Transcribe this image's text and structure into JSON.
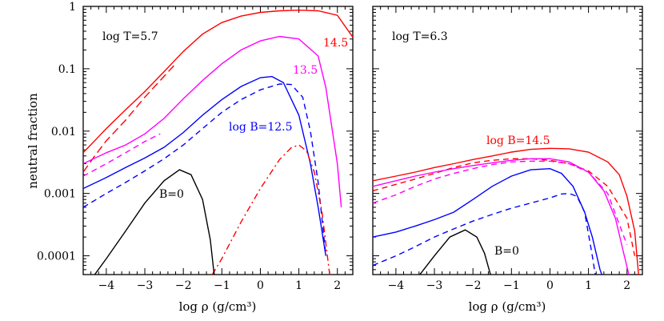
{
  "chart_data": [
    {
      "type": "line",
      "panel_label": "log T=5.7",
      "xlabel": "log ρ (g/cm³)",
      "ylabel": "neutral fraction",
      "xlim": [
        -4.6,
        2.4
      ],
      "ylim": [
        5e-05,
        1
      ],
      "yscale": "log",
      "xticks": [
        -4,
        -3,
        -2,
        -1,
        0,
        1,
        2
      ],
      "xtick_labels": [
        "−4",
        "−3",
        "−2",
        "−1",
        "0",
        "1",
        "2"
      ],
      "yticks": [
        0.0001,
        0.001,
        0.01,
        0.1,
        1
      ],
      "ytick_labels": [
        "0.0001",
        "0.001",
        "0.01",
        "0.1",
        "1"
      ],
      "grid": false,
      "series": [
        {
          "label": "14.5",
          "color": "#ff0000",
          "dash": "solid",
          "x": [
            -4.6,
            -4.3,
            -4,
            -3.5,
            -3,
            -2.5,
            -2,
            -1.5,
            -1,
            -0.5,
            0,
            0.5,
            1,
            1.5,
            2,
            2.4
          ],
          "y": [
            0.0045,
            0.007,
            0.011,
            0.022,
            0.043,
            0.09,
            0.19,
            0.36,
            0.55,
            0.7,
            0.8,
            0.85,
            0.87,
            0.85,
            0.72,
            0.32
          ]
        },
        {
          "label": "",
          "color": "#ff0000",
          "dash": "longdash",
          "x": [
            -4.6,
            -4.3,
            -4,
            -3.5,
            -3,
            -2.6,
            -2.2
          ],
          "y": [
            0.0022,
            0.004,
            0.007,
            0.015,
            0.035,
            0.065,
            0.12
          ]
        },
        {
          "label": "13.5",
          "color": "#ff00ff",
          "dash": "solid",
          "x": [
            -4.6,
            -4,
            -3.5,
            -3,
            -2.5,
            -2,
            -1.5,
            -1,
            -0.5,
            0,
            0.5,
            1,
            1.5,
            1.7,
            2,
            2.1
          ],
          "y": [
            0.003,
            0.0045,
            0.006,
            0.009,
            0.016,
            0.033,
            0.065,
            0.12,
            0.2,
            0.28,
            0.33,
            0.3,
            0.16,
            0.05,
            0.003,
            0.0006
          ]
        },
        {
          "label": "",
          "color": "#ff00ff",
          "dash": "dash",
          "x": [
            -4.6,
            -4,
            -3.5,
            -3,
            -2.6
          ],
          "y": [
            0.0019,
            0.003,
            0.0045,
            0.0068,
            0.009
          ]
        },
        {
          "label": "log B=12.5",
          "color": "#0000ff",
          "dash": "solid",
          "x": [
            -4.6,
            -4,
            -3.5,
            -3,
            -2.5,
            -2,
            -1.5,
            -1,
            -0.5,
            0,
            0.3,
            0.6,
            1,
            1.3,
            1.5,
            1.7
          ],
          "y": [
            0.0012,
            0.0018,
            0.0026,
            0.0037,
            0.0055,
            0.0095,
            0.018,
            0.032,
            0.052,
            0.072,
            0.075,
            0.06,
            0.018,
            0.003,
            0.0006,
            0.0001
          ]
        },
        {
          "label": "",
          "color": "#0000ff",
          "dash": "dash",
          "x": [
            -4.6,
            -4,
            -3.5,
            -3,
            -2.5,
            -2,
            -1.5,
            -1,
            -0.5,
            0,
            0.5,
            0.8,
            1.1,
            1.3,
            1.5,
            1.7
          ],
          "y": [
            0.0006,
            0.001,
            0.0015,
            0.0023,
            0.0036,
            0.006,
            0.011,
            0.02,
            0.032,
            0.046,
            0.057,
            0.056,
            0.035,
            0.01,
            0.0015,
            0.0001
          ]
        },
        {
          "label": "",
          "color": "#ff0000",
          "dash": "dashdot",
          "x": [
            -1.25,
            -1,
            -0.5,
            0,
            0.5,
            0.8,
            1,
            1.2,
            1.4,
            1.6,
            1.8
          ],
          "y": [
            5e-05,
            9e-05,
            0.00035,
            0.0012,
            0.0035,
            0.0054,
            0.006,
            0.0048,
            0.0022,
            0.0005,
            5e-05
          ]
        },
        {
          "label": "B=0",
          "color": "#000000",
          "dash": "solid",
          "x": [
            -4.3,
            -4,
            -3.5,
            -3,
            -2.5,
            -2.1,
            -1.8,
            -1.5,
            -1.3,
            -1.2
          ],
          "y": [
            5e-05,
            9e-05,
            0.00025,
            0.0007,
            0.0016,
            0.0024,
            0.002,
            0.0008,
            0.00018,
            5e-05
          ]
        }
      ],
      "annotations": [
        {
          "text": "log T=5.7",
          "color": "#000000"
        },
        {
          "text": "14.5",
          "color": "#ff0000"
        },
        {
          "text": "13.5",
          "color": "#ff00ff"
        },
        {
          "text": "log B=12.5",
          "color": "#0000ff"
        },
        {
          "text": "B=0",
          "color": "#000000"
        }
      ]
    },
    {
      "type": "line",
      "panel_label": "log T=6.3",
      "xlabel": "log ρ (g/cm³)",
      "ylabel": "",
      "xlim": [
        -4.6,
        2.4
      ],
      "ylim": [
        5e-05,
        1
      ],
      "yscale": "log",
      "xticks": [
        -4,
        -3,
        -2,
        -1,
        0,
        1,
        2
      ],
      "xtick_labels": [
        "−4",
        "−3",
        "−2",
        "−1",
        "0",
        "1",
        "2"
      ],
      "grid": false,
      "series": [
        {
          "label": "log B=14.5",
          "color": "#ff0000",
          "dash": "solid",
          "x": [
            -4.6,
            -4,
            -3.5,
            -3,
            -2.5,
            -2,
            -1.5,
            -1,
            -0.5,
            0,
            0.5,
            1,
            1.5,
            1.8,
            2,
            2.2,
            2.3
          ],
          "y": [
            0.0016,
            0.0019,
            0.0022,
            0.0026,
            0.003,
            0.0035,
            0.004,
            0.0046,
            0.0051,
            0.0053,
            0.0052,
            0.0046,
            0.0032,
            0.002,
            0.0009,
            0.00025,
            5e-05
          ]
        },
        {
          "label": "",
          "color": "#ff0000",
          "dash": "dash",
          "x": [
            -4.6,
            -4,
            -3.5,
            -3,
            -2.5,
            -2,
            -1.5,
            -1,
            -0.5,
            0,
            0.5,
            1,
            1.5,
            2,
            2.2
          ],
          "y": [
            0.0011,
            0.0014,
            0.0017,
            0.0021,
            0.0026,
            0.0031,
            0.0034,
            0.0036,
            0.0036,
            0.0034,
            0.003,
            0.0023,
            0.0013,
            0.0004,
            0.0001
          ]
        },
        {
          "label": "",
          "color": "#ff00ff",
          "dash": "solid",
          "x": [
            -4.6,
            -4,
            -3.5,
            -3,
            -2.5,
            -2,
            -1.5,
            -1,
            -0.5,
            0,
            0.5,
            1,
            1.4,
            1.7,
            1.9,
            2.05
          ],
          "y": [
            0.0013,
            0.0016,
            0.0019,
            0.0022,
            0.0025,
            0.0028,
            0.0031,
            0.0034,
            0.0036,
            0.0036,
            0.0032,
            0.0022,
            0.0011,
            0.0004,
            0.00012,
            5e-05
          ]
        },
        {
          "label": "",
          "color": "#ff00ff",
          "dash": "dash",
          "x": [
            -4.6,
            -4,
            -3.5,
            -3,
            -2.5,
            -2,
            -1.5,
            -1,
            -0.5,
            0,
            0.5,
            1,
            1.5,
            2
          ],
          "y": [
            0.0007,
            0.00095,
            0.0013,
            0.0017,
            0.0021,
            0.0025,
            0.0029,
            0.0032,
            0.0033,
            0.0033,
            0.003,
            0.0022,
            0.001,
            0.00015
          ]
        },
        {
          "label": "",
          "color": "#0000ff",
          "dash": "solid",
          "x": [
            -4.6,
            -4,
            -3.5,
            -3,
            -2.5,
            -2,
            -1.5,
            -1,
            -0.5,
            0,
            0.3,
            0.6,
            0.9,
            1.1,
            1.3,
            1.4
          ],
          "y": [
            0.0002,
            0.00024,
            0.0003,
            0.00038,
            0.0005,
            0.0008,
            0.0013,
            0.0019,
            0.0024,
            0.0025,
            0.0021,
            0.0013,
            0.0005,
            0.0002,
            6e-05,
            4e-05
          ]
        },
        {
          "label": "",
          "color": "#0000ff",
          "dash": "dash",
          "x": [
            -4.6,
            -4,
            -3.5,
            -3,
            -2.5,
            -2,
            -1.5,
            -1,
            -0.5,
            0,
            0.3,
            0.5,
            0.7,
            0.9,
            1.1,
            1.2
          ],
          "y": [
            7e-05,
            0.0001,
            0.00014,
            0.0002,
            0.00027,
            0.00036,
            0.00046,
            0.00058,
            0.0007,
            0.00085,
            0.00098,
            0.001,
            0.0009,
            0.0005,
            0.0001,
            4e-05
          ]
        },
        {
          "label": "B=0",
          "color": "#000000",
          "dash": "solid",
          "x": [
            -3.5,
            -3,
            -2.6,
            -2.2,
            -1.9,
            -1.7,
            -1.5
          ],
          "y": [
            4e-05,
            0.0001,
            0.0002,
            0.00026,
            0.0002,
            0.00011,
            4e-05
          ]
        }
      ],
      "annotations": [
        {
          "text": "log T=6.3",
          "color": "#000000"
        },
        {
          "text": "log B=14.5",
          "color": "#ff0000"
        },
        {
          "text": "B=0",
          "color": "#000000"
        }
      ]
    }
  ]
}
